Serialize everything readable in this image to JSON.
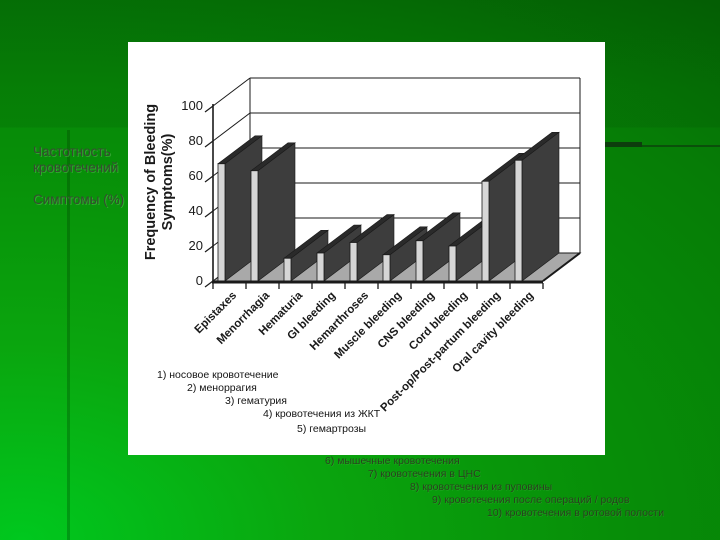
{
  "slide": {
    "heading_lines": [
      "Частотность",
      "кровотечений"
    ],
    "subheading": "Симптомы (%)"
  },
  "chart_data": {
    "type": "bar",
    "variant": "3d-column",
    "title": "",
    "ylabel_lines": [
      "Frequency of Bleeding",
      "Symptoms(%)"
    ],
    "xlabel": "",
    "categories": [
      "Epistaxes",
      "Menorrhagia",
      "Hematuria",
      "GI bleeding",
      "Hemarthroses",
      "Muscle bleeding",
      "CNS bleeding",
      "Cord bleeding",
      "Post-op/Post-partum bleeding",
      "Oral cavity bleeding"
    ],
    "values": [
      67,
      63,
      13,
      16,
      22,
      15,
      23,
      20,
      57,
      69
    ],
    "ylim": [
      0,
      100
    ],
    "yticks": [
      0,
      20,
      40,
      60,
      80,
      100
    ],
    "grid": true,
    "legend": "none",
    "colors": {
      "bar_front": "#d6d6d6",
      "bar_side": "#3d3d3d",
      "bar_top": "#2a2a2a",
      "floor": "#a9a9a9",
      "line": "#1a1a1a"
    }
  },
  "annotations": [
    "1) носовое кровотечение",
    "2) меноррагия",
    "3) гематурия",
    "4) кровотечения из ЖКТ",
    "5) гемартрозы",
    "6) мышечные кровотечения",
    "7) кровотечения в ЦНС",
    "8) кровотечения из пуповины",
    "9) кровотечения после операций / родов",
    "10) кровотечения в ротовой полости"
  ]
}
